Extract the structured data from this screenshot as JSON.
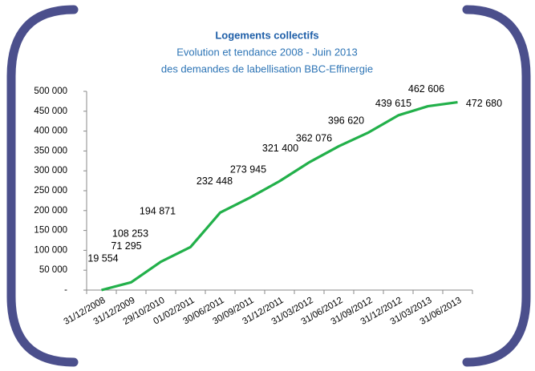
{
  "chart_data": {
    "type": "line",
    "title": "Logements collectifs",
    "subtitle": [
      "Evolution et tendance 2008 - Juin 2013",
      "des demandes de labellisation BBC-Effinergie"
    ],
    "categories": [
      "31/12/2008",
      "31/12/2009",
      "29/10/2010",
      "01/02/2011",
      "30/06/2011",
      "30/09/2011",
      "31/12/2011",
      "31/03/2012",
      "31/06/2012",
      "31/09/2012",
      "31/12/2012",
      "31/03/2013",
      "31/06/2013"
    ],
    "values": [
      0,
      19554,
      71295,
      108253,
      194871,
      232448,
      273945,
      321400,
      362076,
      396620,
      439615,
      462606,
      472680
    ],
    "value_labels": [
      null,
      "19 554",
      "71 295",
      "108 253",
      "194 871",
      "232 448",
      "273 945",
      "321 400",
      "362 076",
      "396 620",
      "439 615",
      "462 606",
      "472 680"
    ],
    "color": "#22b04a",
    "ylim": [
      0,
      500000
    ],
    "yticks": [
      {
        "value": 0,
        "label": "-"
      },
      {
        "value": 50000,
        "label": "50 000"
      },
      {
        "value": 100000,
        "label": "100 000"
      },
      {
        "value": 150000,
        "label": "150 000"
      },
      {
        "value": 200000,
        "label": "200 000"
      },
      {
        "value": 250000,
        "label": "250 000"
      },
      {
        "value": 300000,
        "label": "300 000"
      },
      {
        "value": 350000,
        "label": "350 000"
      },
      {
        "value": 400000,
        "label": "400 000"
      },
      {
        "value": 450000,
        "label": "450 000"
      },
      {
        "value": 500000,
        "label": "500 000"
      }
    ],
    "grid": false
  }
}
